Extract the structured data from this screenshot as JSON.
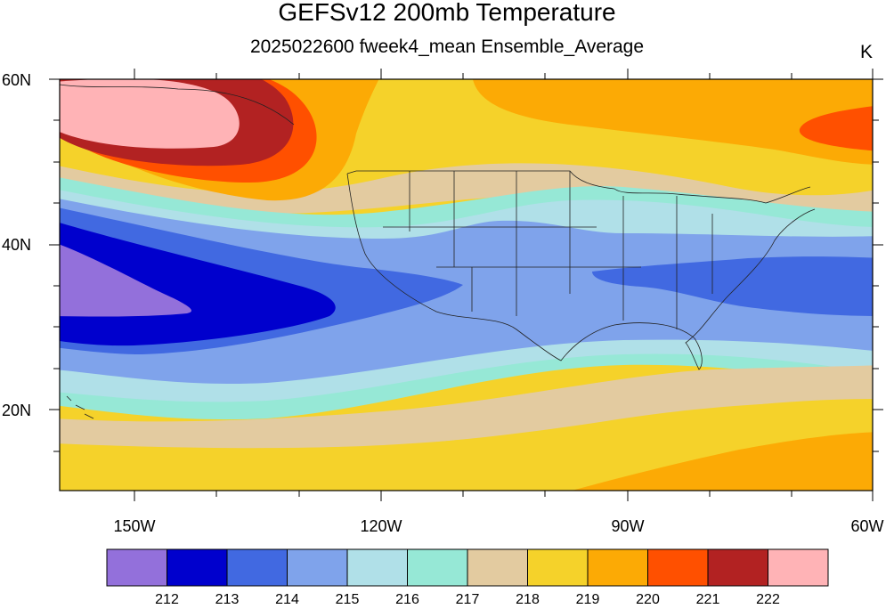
{
  "title": "GEFSv12 200mb Temperature",
  "subtitle": "2025022600 fweek4_mean Ensemble_Average",
  "units": "K",
  "map": {
    "lat_labels": [
      "60N",
      "40N",
      "20N"
    ],
    "lon_labels": [
      "150W",
      "120W",
      "90W",
      "60W"
    ],
    "extent": {
      "lon_min": -159,
      "lon_max": -60,
      "lat_min": 10,
      "lat_max": 60
    }
  },
  "colorbar": {
    "colors": [
      "#9370DB",
      "#0000CD",
      "#4169E1",
      "#7FA3EB",
      "#B0E0E8",
      "#96E8D6",
      "#E3CBA0",
      "#F5D22A",
      "#FCAA05",
      "#FF5000",
      "#B22222",
      "#FFB3B6"
    ],
    "labels": [
      "212",
      "213",
      "214",
      "215",
      "216",
      "217",
      "218",
      "219",
      "220",
      "221",
      "222"
    ]
  }
}
